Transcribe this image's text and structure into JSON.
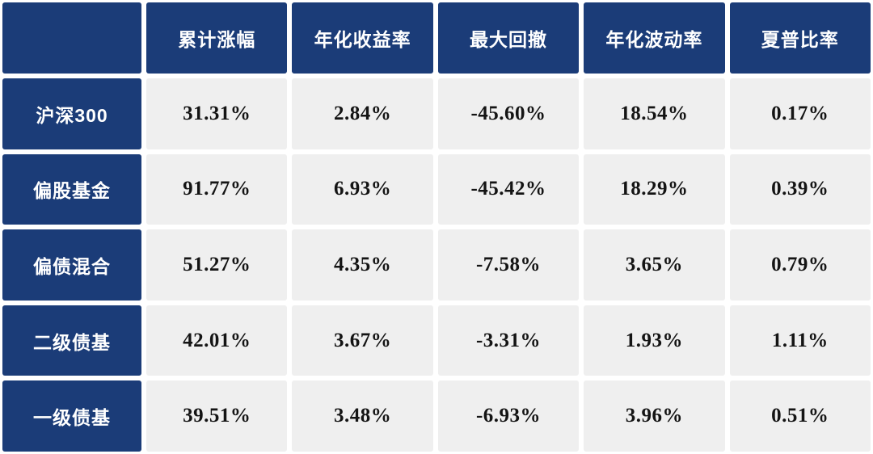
{
  "chart_data": {
    "type": "table",
    "columns": [
      "累计涨幅",
      "年化收益率",
      "最大回撤",
      "年化波动率",
      "夏普比率"
    ],
    "rows": [
      {
        "label": "沪深300",
        "values": [
          "31.31%",
          "2.84%",
          "-45.60%",
          "18.54%",
          "0.17%"
        ]
      },
      {
        "label": "偏股基金",
        "values": [
          "91.77%",
          "6.93%",
          "-45.42%",
          "18.29%",
          "0.39%"
        ]
      },
      {
        "label": "偏债混合",
        "values": [
          "51.27%",
          "4.35%",
          "-7.58%",
          "3.65%",
          "0.79%"
        ]
      },
      {
        "label": "二级债基",
        "values": [
          "42.01%",
          "3.67%",
          "-3.31%",
          "1.93%",
          "1.11%"
        ]
      },
      {
        "label": "一级债基",
        "values": [
          "39.51%",
          "3.48%",
          "-6.93%",
          "3.96%",
          "0.51%"
        ]
      }
    ]
  },
  "colors": {
    "header_bg": "#1b3c78",
    "header_text": "#ffffff",
    "cell_bg": "#efefef",
    "cell_text": "#141414",
    "gap": "#ffffff"
  }
}
